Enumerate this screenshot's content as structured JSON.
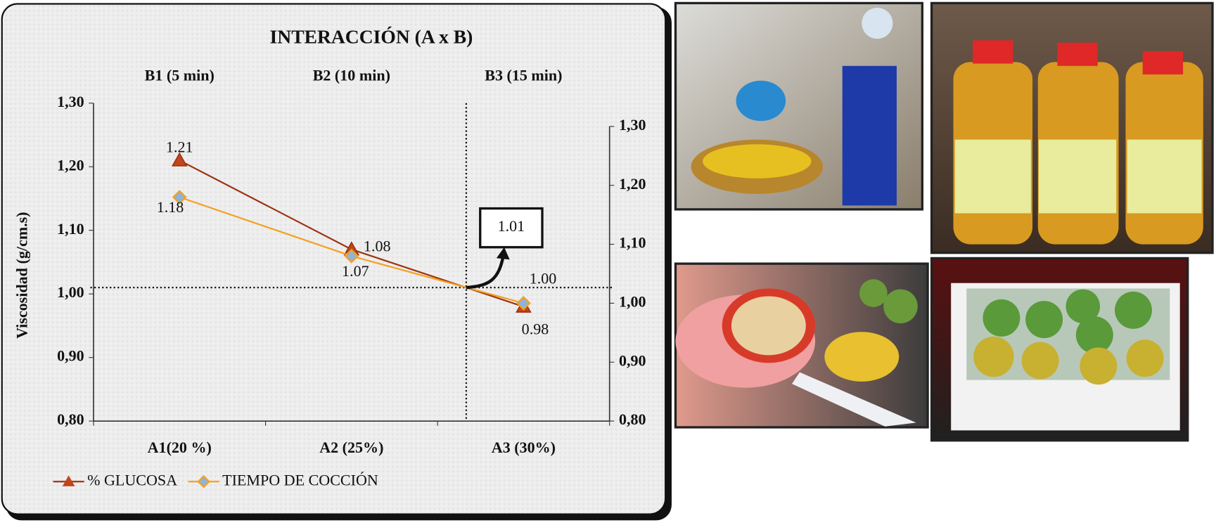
{
  "chart_data": {
    "type": "line",
    "title": "INTERACCIÓN (A x B)",
    "categories": [
      "A1(20 %)",
      "A2 (25%)",
      "A3 (30%)"
    ],
    "top_categories": [
      "B1 (5 min)",
      "B2 (10 min)",
      "B3 (15 min)"
    ],
    "y_label": "Viscosidad (g/cm.s)",
    "ylim": [
      0.8,
      1.3
    ],
    "yticks": [
      {
        "value": 0.8,
        "label": "0,80"
      },
      {
        "value": 0.9,
        "label": "0,90"
      },
      {
        "value": 1.0,
        "label": "1,00"
      },
      {
        "value": 1.1,
        "label": "1,10"
      },
      {
        "value": 1.2,
        "label": "1,20"
      },
      {
        "value": 1.3,
        "label": "1,30"
      }
    ],
    "y2lim": [
      0.8,
      1.3
    ],
    "y2ticks": [
      {
        "value": 0.8,
        "label": "0,80"
      },
      {
        "value": 0.9,
        "label": "0,90"
      },
      {
        "value": 1.0,
        "label": "1,00"
      },
      {
        "value": 1.1,
        "label": "1,10"
      },
      {
        "value": 1.2,
        "label": "1,20"
      },
      {
        "value": 1.3,
        "label": "1,30"
      }
    ],
    "series": [
      {
        "name": "% GLUCOSA",
        "color": "#9c3412",
        "marker": "triangle",
        "values": [
          1.21,
          1.07,
          0.98
        ],
        "value_labels": [
          "1.21",
          "1.07",
          "0.98"
        ]
      },
      {
        "name": "TIEMPO DE COCCIÓN",
        "color": "#f5a020",
        "marker": "diamond",
        "axis": "y2",
        "values": [
          1.18,
          1.08,
          1.0
        ],
        "value_labels": [
          "1.18",
          "1.08",
          "1.00"
        ]
      }
    ],
    "annotation": {
      "value": 1.01,
      "label": "1.01"
    }
  }
}
